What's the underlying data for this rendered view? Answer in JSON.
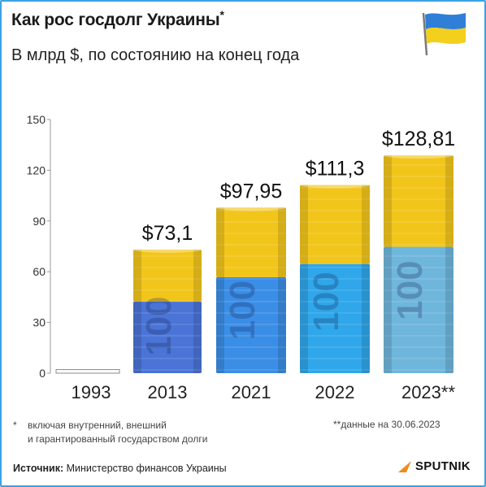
{
  "header": {
    "title": "Как рос госдолг Украины",
    "title_mark": "*",
    "subtitle": "В млрд $, по состоянию на конец года"
  },
  "flag_icon": "ukraine-flag-icon",
  "colors": {
    "frame": "#3aa3e3",
    "yellow": "#f2c51b",
    "blue_2013": "#4a74d6",
    "blue_2021": "#3b8ee6",
    "blue_2022": "#2fa7ea",
    "blue_2023": "#6fb6dc",
    "text": "#1a1a1a"
  },
  "chart_data": {
    "type": "bar",
    "categories": [
      "1993",
      "2013",
      "2021",
      "2022",
      "2023**"
    ],
    "values": [
      0.2,
      73.1,
      97.95,
      111.3,
      128.81
    ],
    "value_labels": [
      "",
      "$73,1",
      "$97,95",
      "$111,3",
      "$128,81"
    ],
    "ylim": [
      0,
      150
    ],
    "yticks": [
      "0",
      "30",
      "60",
      "90",
      "120",
      "150"
    ],
    "ytick_values": [
      0,
      30,
      60,
      90,
      120,
      150
    ],
    "xlabel": "",
    "ylabel": "",
    "grid": false,
    "legend": "none"
  },
  "footnotes": {
    "star_mark": "*",
    "note1_line1": "включая внутренний, внешний",
    "note1_line2": "и гарантированный государством долги",
    "note2": "**данные на 30.06.2023"
  },
  "source": {
    "label": "Источник:",
    "text": "Министерство финансов Украины"
  },
  "logo": {
    "text": "SPUTNIK",
    "icon": "sputnik-logo-icon"
  }
}
